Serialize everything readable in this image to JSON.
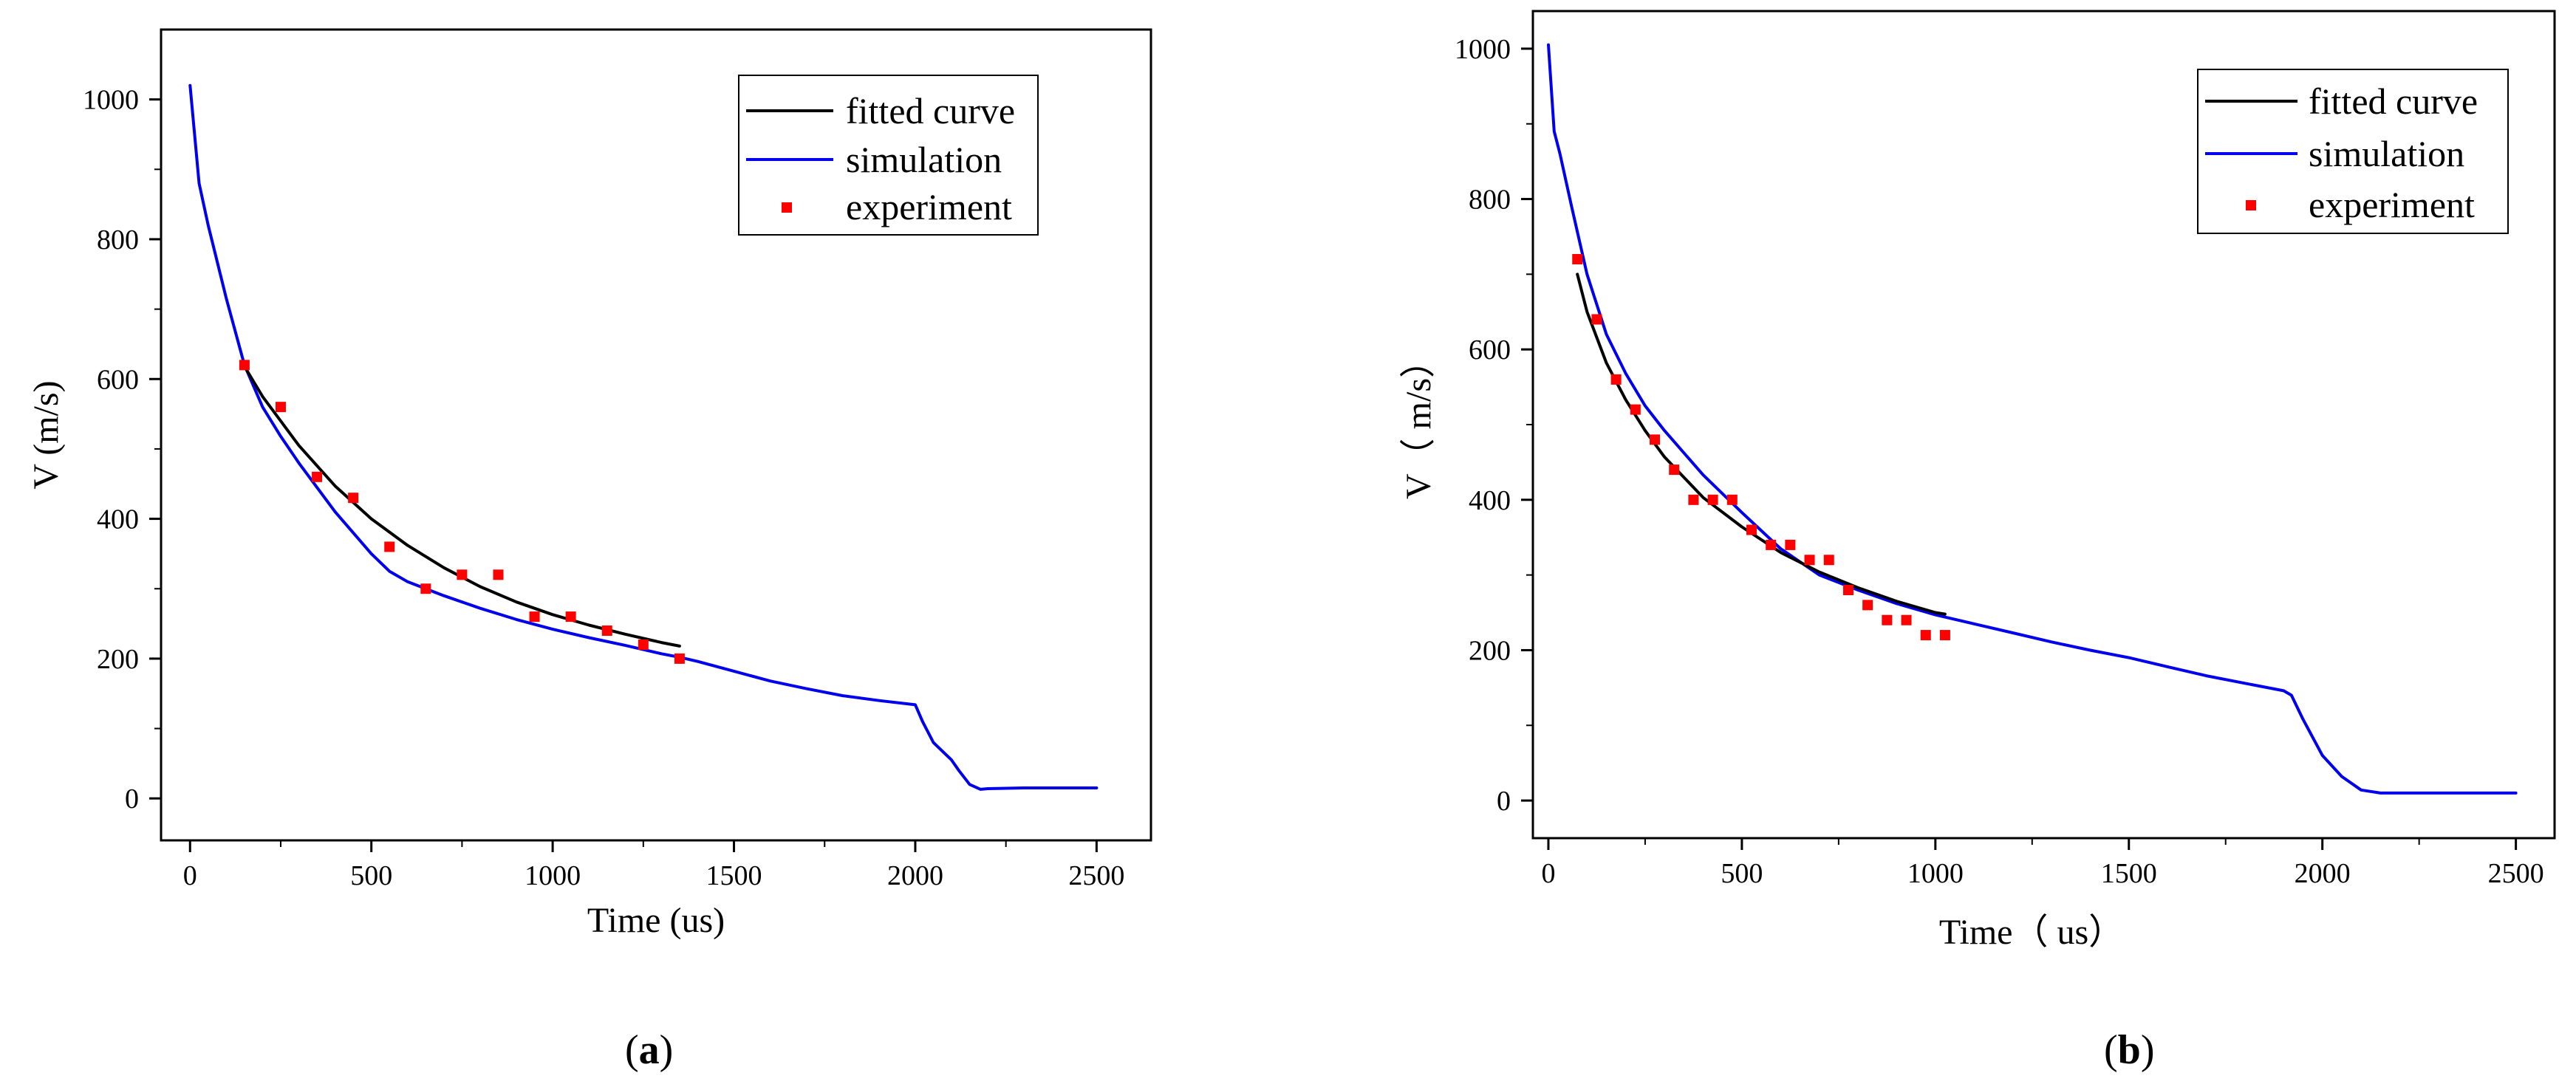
{
  "chart_data": [
    {
      "type": "line",
      "panel_label": "a",
      "xlabel": "Time (us)",
      "ylabel": "V (m/s)",
      "xlim": [
        -80,
        2650
      ],
      "ylim": [
        -60,
        1100
      ],
      "xticks": [
        0,
        500,
        1000,
        1500,
        2000,
        2500
      ],
      "yticks": [
        0,
        200,
        400,
        600,
        800,
        1000
      ],
      "legend_position": "top-right",
      "series": [
        {
          "name": "fitted curve",
          "kind": "line",
          "color": "#000000",
          "x": [
            150,
            200,
            300,
            400,
            500,
            600,
            700,
            800,
            900,
            1000,
            1100,
            1200,
            1300,
            1350
          ],
          "y": [
            618,
            575,
            505,
            447,
            400,
            362,
            330,
            303,
            281,
            263,
            248,
            235,
            223,
            218
          ]
        },
        {
          "name": "simulation",
          "kind": "line",
          "color": "#0000ee",
          "x": [
            0,
            25,
            50,
            100,
            150,
            200,
            250,
            300,
            400,
            500,
            550,
            600,
            700,
            800,
            900,
            1000,
            1100,
            1200,
            1300,
            1350,
            1400,
            1500,
            1600,
            1700,
            1800,
            1900,
            2000,
            2020,
            2050,
            2080,
            2100,
            2120,
            2150,
            2180,
            2200,
            2300,
            2400,
            2500
          ],
          "y": [
            1020,
            880,
            820,
            715,
            620,
            560,
            518,
            480,
            410,
            350,
            325,
            310,
            290,
            272,
            256,
            242,
            230,
            219,
            207,
            202,
            196,
            182,
            168,
            157,
            147,
            140,
            134,
            110,
            80,
            65,
            55,
            40,
            20,
            13,
            14,
            15,
            15,
            15
          ]
        },
        {
          "name": "experiment",
          "kind": "scatter",
          "color": "#ff0000",
          "x": [
            150,
            250,
            350,
            450,
            550,
            650,
            750,
            850,
            950,
            1050,
            1150,
            1250,
            1350
          ],
          "y": [
            620,
            560,
            460,
            430,
            360,
            300,
            320,
            320,
            260,
            260,
            240,
            220,
            200
          ]
        }
      ]
    },
    {
      "type": "line",
      "panel_label": "b",
      "xlabel": "Time（ us）",
      "ylabel": "V（ m/s）",
      "xlim": [
        -40,
        2600
      ],
      "ylim": [
        -50,
        1050
      ],
      "xticks": [
        0,
        500,
        1000,
        1500,
        2000,
        2500
      ],
      "yticks": [
        0,
        200,
        400,
        600,
        800,
        1000
      ],
      "legend_position": "top-right",
      "series": [
        {
          "name": "fitted curve",
          "kind": "line",
          "color": "#000000",
          "x": [
            75,
            100,
            150,
            200,
            250,
            300,
            400,
            500,
            600,
            700,
            800,
            900,
            1000,
            1025
          ],
          "y": [
            700,
            650,
            582,
            533,
            492,
            457,
            403,
            364,
            330,
            304,
            283,
            265,
            250,
            248
          ]
        },
        {
          "name": "simulation",
          "kind": "line",
          "color": "#0000ee",
          "x": [
            0,
            15,
            30,
            60,
            100,
            150,
            200,
            250,
            300,
            400,
            500,
            600,
            700,
            800,
            900,
            1000,
            1100,
            1200,
            1300,
            1400,
            1500,
            1600,
            1700,
            1800,
            1900,
            1920,
            1950,
            2000,
            2050,
            2100,
            2150,
            2200,
            2300,
            2400,
            2500
          ],
          "y": [
            1005,
            890,
            860,
            790,
            700,
            620,
            568,
            525,
            492,
            433,
            383,
            335,
            300,
            280,
            262,
            247,
            235,
            223,
            211,
            200,
            190,
            178,
            166,
            156,
            146,
            140,
            108,
            60,
            32,
            14,
            10,
            10,
            10,
            10,
            10
          ]
        },
        {
          "name": "experiment",
          "kind": "scatter",
          "color": "#ff0000",
          "x": [
            75,
            125,
            175,
            225,
            275,
            325,
            375,
            425,
            475,
            525,
            575,
            625,
            675,
            725,
            775,
            825,
            875,
            925,
            975,
            1025
          ],
          "y": [
            720,
            640,
            560,
            520,
            480,
            440,
            400,
            400,
            400,
            360,
            340,
            340,
            320,
            320,
            280,
            260,
            240,
            240,
            220,
            220
          ]
        }
      ]
    }
  ]
}
